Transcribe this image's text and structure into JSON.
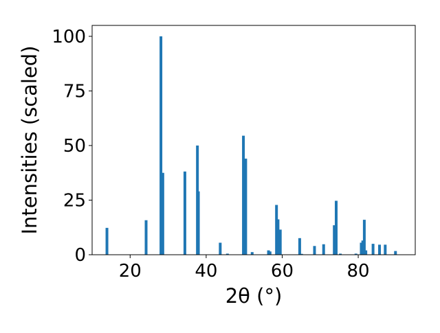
{
  "chart_data": {
    "type": "bar",
    "xlabel": "2θ (°)",
    "ylabel": "Intensities (scaled)",
    "xlim": [
      10,
      95
    ],
    "ylim": [
      0,
      105
    ],
    "xticks": [
      20,
      40,
      60,
      80
    ],
    "yticks": [
      0,
      25,
      50,
      75,
      100
    ],
    "xtick_labels": [
      "20",
      "40",
      "60",
      "80"
    ],
    "ytick_labels": [
      "0",
      "25",
      "50",
      "75",
      "100"
    ],
    "grid": false,
    "legend": "none",
    "bar_color": "#1f77b4",
    "bar_width": 0.7,
    "series": [
      {
        "x": [
          13.9,
          24.2,
          28.1,
          28.6,
          34.4,
          37.7,
          37.95,
          43.7,
          45.6,
          49.8,
          50.4,
          52.1,
          56.4,
          56.8,
          58.5,
          58.9,
          59.5,
          64.6,
          65.1,
          68.5,
          70.9,
          73.7,
          74.2,
          75.3,
          79.4,
          80.8,
          81.2,
          81.6,
          82.0,
          83.9,
          85.6,
          87.1,
          89.8
        ],
        "values": [
          12.3,
          15.8,
          100,
          37.5,
          38.1,
          50.0,
          29.0,
          5.5,
          0.5,
          54.5,
          44.0,
          1.2,
          2.0,
          1.5,
          22.8,
          16.2,
          11.5,
          7.6,
          0.4,
          4.0,
          4.8,
          13.5,
          24.7,
          0.5,
          0.5,
          5.5,
          6.5,
          16.0,
          2.0,
          5.0,
          4.6,
          4.6,
          1.7
        ]
      }
    ]
  }
}
